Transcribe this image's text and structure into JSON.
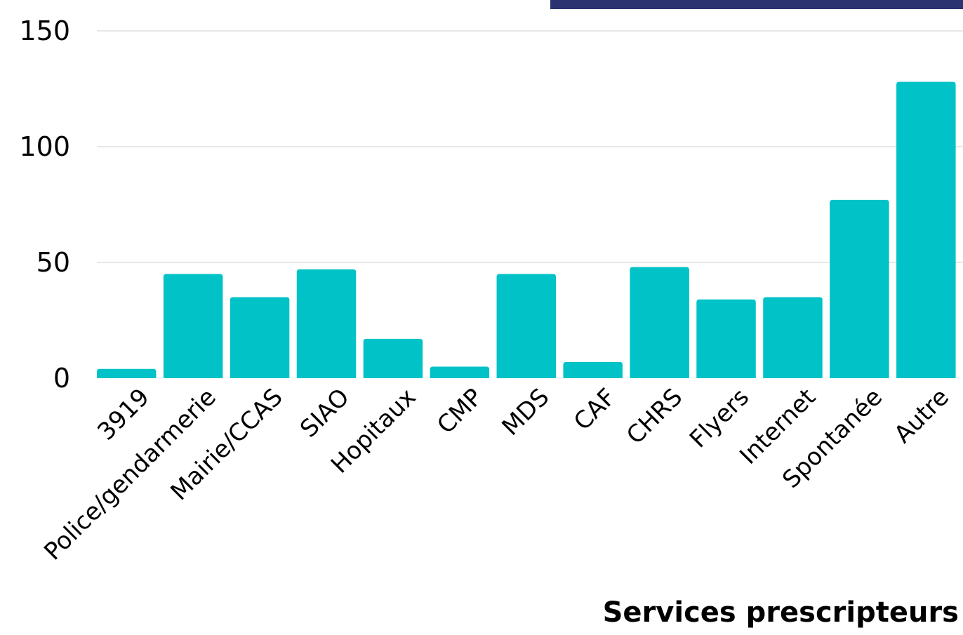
{
  "colors": {
    "bar": "#00c2c7",
    "header_band": "#2b3470",
    "grid": "#cfcfcf",
    "text": "#000000"
  },
  "chart_data": {
    "type": "bar",
    "categories": [
      "3919",
      "Police/gendarmerie",
      "Mairie/CCAS",
      "SIAO",
      "Hopitaux",
      "CMP",
      "MDS",
      "CAF",
      "CHRS",
      "Flyers",
      "Internet",
      "Spontanée",
      "Autre"
    ],
    "values": [
      4,
      45,
      35,
      47,
      17,
      5,
      45,
      7,
      48,
      34,
      35,
      77,
      128
    ],
    "xlabel": "Services prescripteurs",
    "ylabel": "",
    "ylim": [
      0,
      150
    ],
    "yticks": [
      0,
      50,
      100,
      150
    ],
    "grid": true
  }
}
